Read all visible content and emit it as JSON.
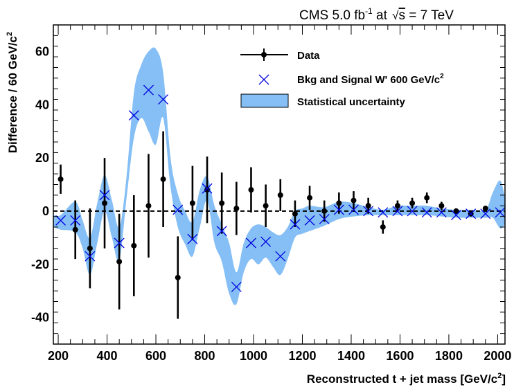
{
  "header": {
    "experiment": "CMS",
    "lumi_value": "5.0 fb",
    "lumi_exponent": "-1",
    "energy_prefix": "at",
    "sqrt_s": "s",
    "energy_value": "=  7 TeV"
  },
  "chart_data": {
    "type": "scatter",
    "xlabel": "Reconstructed t + jet mass [GeV/c",
    "xlabel_superscript": "2",
    "xlabel_suffix": "]",
    "ylabel": "Difference / 60 GeV/c",
    "ylabel_superscript": "2",
    "xlim": [
      180,
      2030
    ],
    "ylim": [
      -50,
      70
    ],
    "x_ticks": [
      200,
      400,
      600,
      800,
      1000,
      1200,
      1400,
      1600,
      1800,
      2000
    ],
    "y_ticks": [
      -40,
      -20,
      0,
      20,
      40,
      60
    ],
    "reference_line_y": 0,
    "legend": {
      "placement": "top-right",
      "data_label": "Data",
      "signal_label": "Bkg and Signal W' 600 GeV/c",
      "signal_label_superscript": "2",
      "band_label": "Statistical uncertainty"
    },
    "colors": {
      "band": "#85bff5",
      "signal": "#0000e0",
      "data": "#000000",
      "refline": "#000000"
    },
    "series": [
      {
        "name": "Data",
        "style": "points-errorbars",
        "x": [
          210,
          270,
          330,
          390,
          450,
          510,
          570,
          630,
          690,
          750,
          810,
          870,
          930,
          990,
          1050,
          1110,
          1170,
          1230,
          1290,
          1350,
          1410,
          1470,
          1530,
          1590,
          1650,
          1710,
          1770,
          1830,
          1890,
          1950
        ],
        "y": [
          12,
          -7,
          -14,
          3,
          -19,
          -13,
          2,
          12,
          -25,
          3,
          8,
          3,
          1,
          8,
          2,
          6,
          -1,
          5,
          0,
          3,
          4,
          2,
          -6,
          2,
          3,
          5,
          2,
          0,
          -1,
          1
        ],
        "yerr": [
          5.5,
          11,
          15,
          17,
          18,
          19,
          19.5,
          18,
          15.5,
          14,
          12.5,
          11.5,
          10,
          8.5,
          8,
          6,
          5,
          4.5,
          4,
          4,
          3.5,
          3,
          2.5,
          2,
          2,
          2,
          1.5,
          1,
          1,
          1
        ]
      },
      {
        "name": "Bkg and Signal W' 600 GeV/c2",
        "style": "cross-markers",
        "x": [
          210,
          270,
          330,
          390,
          450,
          510,
          570,
          630,
          690,
          750,
          810,
          870,
          930,
          990,
          1050,
          1110,
          1170,
          1230,
          1290,
          1350,
          1410,
          1470,
          1530,
          1590,
          1650,
          1710,
          1770,
          1830,
          1890,
          1950,
          2010
        ],
        "y": [
          -3.5,
          -3.5,
          -17,
          6,
          -12,
          36,
          45.5,
          42,
          0.5,
          -10.5,
          8.5,
          -7.5,
          -28.5,
          -12,
          -11.5,
          -17,
          -5,
          -3.5,
          -3,
          0.5,
          0.5,
          0,
          -0.5,
          0,
          0,
          -0.5,
          -0.5,
          -1.5,
          -1,
          -1,
          -0.5
        ]
      }
    ],
    "band": {
      "name": "Statistical uncertainty",
      "x": [
        180,
        210,
        270,
        300,
        330,
        360,
        390,
        420,
        450,
        480,
        510,
        540,
        570,
        600,
        630,
        660,
        690,
        720,
        750,
        780,
        810,
        840,
        870,
        900,
        930,
        960,
        990,
        1020,
        1050,
        1080,
        1110,
        1140,
        1170,
        1200,
        1230,
        1290,
        1350,
        1410,
        1470,
        1530,
        1590,
        1650,
        1710,
        1770,
        1830,
        1890,
        1950,
        1980,
        2010,
        2030
      ],
      "upper": [
        -1.5,
        -1.5,
        3.5,
        -3.5,
        -10,
        3,
        13.5,
        4,
        -6,
        13,
        44.5,
        55,
        60,
        61,
        52,
        20,
        6.5,
        0,
        -4,
        8,
        13,
        2,
        -5,
        -12,
        -23,
        -12,
        -6.5,
        -5,
        -6,
        -8,
        -9,
        -6,
        0,
        1,
        2,
        1.5,
        3.5,
        3,
        1.5,
        0.5,
        2,
        2,
        2,
        1,
        0.5,
        0.5,
        0.5,
        7,
        11.5,
        5
      ],
      "lower": [
        -6,
        -7,
        -8,
        -14,
        -24,
        -12,
        0,
        -10,
        -18.5,
        5,
        27.5,
        35,
        30,
        25,
        35,
        9,
        -6,
        -12.5,
        -17,
        -6,
        4,
        -12,
        -19,
        -31,
        -35,
        -23,
        -18,
        -20,
        -17.5,
        -21,
        -24,
        -18,
        -10,
        -8.5,
        -7.5,
        -5.5,
        -3,
        -2,
        -1.5,
        -1.5,
        -1.5,
        -1.5,
        -1.5,
        -2,
        -2.5,
        -2.5,
        -2.5,
        -2.5,
        -6.5,
        -5
      ]
    }
  }
}
